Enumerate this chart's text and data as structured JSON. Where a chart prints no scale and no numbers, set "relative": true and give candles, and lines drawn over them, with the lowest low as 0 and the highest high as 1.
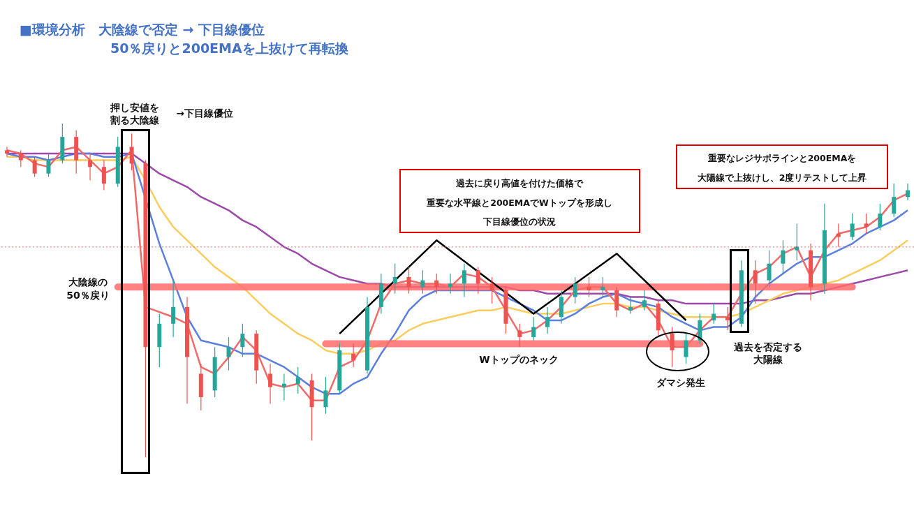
{
  "chart_data": {
    "type": "candlestick",
    "title": "■環境分析　大陰線で否定 → 下目線優位",
    "subtitle": "50％戻りと200EMAを上抜けて再転換",
    "relative": true,
    "categories": [
      null,
      null,
      null,
      null,
      null,
      null,
      null,
      null,
      null,
      null,
      null,
      null,
      null,
      null,
      null,
      null,
      null,
      null,
      null,
      null,
      null,
      null,
      null,
      null,
      null,
      null,
      null,
      null,
      null,
      null,
      null,
      null,
      null,
      null,
      null,
      null,
      null,
      null,
      null,
      null,
      null,
      null,
      null,
      null,
      null,
      null,
      null,
      null,
      null,
      null,
      null,
      null,
      null,
      null,
      null,
      null,
      null,
      null,
      null,
      null,
      null,
      null,
      null,
      null,
      null,
      null
    ],
    "ohlc": [
      [
        0.92,
        0.93,
        0.9,
        0.91
      ],
      [
        0.91,
        0.92,
        0.87,
        0.89
      ],
      [
        0.89,
        0.9,
        0.84,
        0.85
      ],
      [
        0.85,
        0.91,
        0.84,
        0.89
      ],
      [
        0.89,
        1.0,
        0.88,
        0.96
      ],
      [
        0.96,
        0.98,
        0.85,
        0.89
      ],
      [
        0.89,
        0.91,
        0.83,
        0.87
      ],
      [
        0.87,
        0.89,
        0.8,
        0.82
      ],
      [
        0.82,
        0.96,
        0.81,
        0.93
      ],
      [
        0.93,
        0.97,
        0.86,
        0.88
      ],
      [
        0.88,
        0.89,
        0.0,
        0.33
      ],
      [
        0.33,
        0.43,
        0.27,
        0.4
      ],
      [
        0.4,
        0.53,
        0.36,
        0.45
      ],
      [
        0.45,
        0.48,
        0.16,
        0.3
      ],
      [
        0.25,
        0.28,
        0.14,
        0.18
      ],
      [
        0.2,
        0.33,
        0.18,
        0.3
      ],
      [
        0.3,
        0.36,
        0.26,
        0.33
      ],
      [
        0.33,
        0.4,
        0.3,
        0.37
      ],
      [
        0.37,
        0.38,
        0.22,
        0.26
      ],
      [
        0.25,
        0.28,
        0.16,
        0.21
      ],
      [
        0.21,
        0.25,
        0.17,
        0.22
      ],
      [
        0.22,
        0.27,
        0.19,
        0.24
      ],
      [
        0.23,
        0.25,
        0.05,
        0.15
      ],
      [
        0.15,
        0.24,
        0.13,
        0.2
      ],
      [
        0.2,
        0.34,
        0.19,
        0.32
      ],
      [
        0.31,
        0.34,
        0.27,
        0.29
      ],
      [
        0.26,
        0.48,
        0.25,
        0.45
      ],
      [
        0.45,
        0.55,
        0.43,
        0.52
      ],
      [
        0.52,
        0.58,
        0.49,
        0.54
      ],
      [
        0.54,
        0.57,
        0.49,
        0.51
      ],
      [
        0.51,
        0.56,
        0.49,
        0.53
      ],
      [
        0.53,
        0.55,
        0.49,
        0.51
      ],
      [
        0.51,
        0.55,
        0.49,
        0.52
      ],
      [
        0.52,
        0.58,
        0.48,
        0.56
      ],
      [
        0.56,
        0.57,
        0.49,
        0.52
      ],
      [
        0.52,
        0.54,
        0.46,
        0.5
      ],
      [
        0.5,
        0.51,
        0.37,
        0.4
      ],
      [
        0.38,
        0.4,
        0.33,
        0.36
      ],
      [
        0.36,
        0.42,
        0.35,
        0.39
      ],
      [
        0.39,
        0.45,
        0.37,
        0.42
      ],
      [
        0.42,
        0.5,
        0.4,
        0.48
      ],
      [
        0.48,
        0.54,
        0.46,
        0.52
      ],
      [
        0.51,
        0.54,
        0.48,
        0.5
      ],
      [
        0.5,
        0.54,
        0.48,
        0.51
      ],
      [
        0.5,
        0.51,
        0.42,
        0.44
      ],
      [
        0.44,
        0.48,
        0.43,
        0.45
      ],
      [
        0.45,
        0.5,
        0.44,
        0.47
      ],
      [
        0.46,
        0.47,
        0.36,
        0.38
      ],
      [
        0.37,
        0.39,
        0.27,
        0.32
      ],
      [
        0.3,
        0.37,
        0.28,
        0.35
      ],
      [
        0.35,
        0.43,
        0.34,
        0.41
      ],
      [
        0.41,
        0.46,
        0.4,
        0.43
      ],
      [
        0.42,
        0.45,
        0.38,
        0.41
      ],
      [
        0.4,
        0.59,
        0.39,
        0.56
      ],
      [
        0.56,
        0.59,
        0.46,
        0.52
      ],
      [
        0.53,
        0.62,
        0.51,
        0.58
      ],
      [
        0.58,
        0.65,
        0.55,
        0.62
      ],
      [
        0.62,
        0.7,
        0.59,
        0.63
      ],
      [
        0.62,
        0.64,
        0.47,
        0.51
      ],
      [
        0.52,
        0.76,
        0.49,
        0.68
      ],
      [
        0.67,
        0.7,
        0.63,
        0.66
      ],
      [
        0.66,
        0.73,
        0.65,
        0.7
      ],
      [
        0.7,
        0.73,
        0.67,
        0.69
      ],
      [
        0.69,
        0.76,
        0.68,
        0.73
      ],
      [
        0.73,
        0.82,
        0.72,
        0.78
      ],
      [
        0.78,
        0.82,
        0.77,
        0.8
      ]
    ],
    "series": [
      {
        "type": "line",
        "color": "#9b4aa8",
        "values": [
          0.91,
          0.91,
          0.91,
          0.91,
          0.91,
          0.91,
          0.91,
          0.91,
          0.91,
          0.91,
          0.88,
          0.85,
          0.83,
          0.81,
          0.78,
          0.76,
          0.74,
          0.71,
          0.69,
          0.66,
          0.63,
          0.61,
          0.58,
          0.56,
          0.54,
          0.53,
          0.52,
          0.52,
          0.51,
          0.51,
          0.51,
          0.51,
          0.51,
          0.51,
          0.51,
          0.51,
          0.51,
          0.5,
          0.5,
          0.49,
          0.49,
          0.49,
          0.49,
          0.49,
          0.49,
          0.48,
          0.48,
          0.47,
          0.47,
          0.46,
          0.46,
          0.46,
          0.46,
          0.46,
          0.47,
          0.47,
          0.48,
          0.49,
          0.49,
          0.5,
          0.51,
          0.52,
          0.53,
          0.54,
          0.55,
          0.56
        ]
      },
      {
        "type": "line",
        "color": "#f9cd5e",
        "values": [
          0.9,
          0.9,
          0.89,
          0.89,
          0.89,
          0.89,
          0.89,
          0.89,
          0.89,
          0.9,
          0.83,
          0.75,
          0.69,
          0.65,
          0.61,
          0.57,
          0.54,
          0.51,
          0.47,
          0.43,
          0.4,
          0.37,
          0.35,
          0.32,
          0.31,
          0.31,
          0.32,
          0.34,
          0.35,
          0.38,
          0.4,
          0.41,
          0.42,
          0.43,
          0.44,
          0.44,
          0.45,
          0.44,
          0.43,
          0.43,
          0.43,
          0.44,
          0.45,
          0.46,
          0.46,
          0.45,
          0.45,
          0.44,
          0.43,
          0.42,
          0.42,
          0.42,
          0.42,
          0.43,
          0.45,
          0.47,
          0.49,
          0.5,
          null,
          0.52,
          0.53,
          0.55,
          0.57,
          0.59,
          0.62,
          0.65
        ]
      },
      {
        "type": "line",
        "color": "#5b7fdc",
        "values": [
          0.91,
          0.9,
          0.9,
          0.89,
          0.9,
          0.91,
          0.91,
          0.9,
          0.9,
          0.91,
          null,
          0.64,
          0.53,
          0.42,
          0.35,
          0.34,
          0.33,
          0.31,
          0.31,
          0.29,
          0.27,
          0.24,
          0.21,
          0.19,
          0.19,
          0.22,
          0.24,
          0.31,
          0.37,
          0.44,
          0.48,
          0.5,
          0.5,
          0.5,
          0.5,
          0.5,
          0.48,
          0.46,
          0.44,
          0.41,
          0.41,
          0.43,
          0.46,
          0.48,
          0.49,
          0.47,
          0.46,
          0.45,
          0.42,
          0.4,
          0.38,
          0.39,
          0.39,
          0.42,
          0.48,
          0.52,
          0.55,
          0.58,
          0.6,
          0.6,
          0.62,
          0.64,
          0.67,
          0.69,
          0.71,
          0.74
        ]
      },
      {
        "type": "line",
        "color": "#f06a6a",
        "values": [
          0.92,
          0.91,
          0.88,
          0.87,
          0.92,
          0.93,
          0.89,
          0.85,
          0.87,
          0.92,
          0.45,
          null,
          0.42,
          0.4,
          0.27,
          0.25,
          0.3,
          0.36,
          0.32,
          0.22,
          0.21,
          0.22,
          0.17,
          0.17,
          0.27,
          0.29,
          0.35,
          0.46,
          0.52,
          0.53,
          0.52,
          0.52,
          0.51,
          0.55,
          0.54,
          0.51,
          0.44,
          0.37,
          0.38,
          0.41,
          0.45,
          0.5,
          0.51,
          0.51,
          0.46,
          0.44,
          0.46,
          0.41,
          0.33,
          0.33,
          0.38,
          0.42,
          0.42,
          0.49,
          0.55,
          0.57,
          0.61,
          0.63,
          0.54,
          0.62,
          0.67,
          0.68,
          0.69,
          0.72,
          0.77,
          0.79
        ]
      },
      {
        "type": "line",
        "color": "#ff6b6b",
        "values": [
          null,
          null,
          null,
          null,
          null,
          null,
          null,
          null,
          0.51,
          0.51,
          0.51,
          0.51,
          0.51,
          0.51,
          0.51,
          0.51,
          0.51,
          0.51,
          0.51,
          0.51,
          0.51,
          0.51,
          0.51,
          0.51,
          0.51,
          0.51,
          0.51,
          0.51,
          0.51,
          0.51,
          0.51,
          0.51,
          0.51,
          0.51,
          0.51,
          0.51,
          0.51,
          0.51,
          0.51,
          0.51,
          0.51,
          0.51,
          0.51,
          0.51,
          0.51,
          0.51,
          0.51,
          0.51,
          0.51,
          0.51,
          0.51,
          0.51,
          0.51,
          0.51,
          0.51,
          0.51,
          0.51,
          0.51,
          0.51,
          0.51,
          0.51,
          0.51,
          null,
          null,
          null,
          null
        ]
      },
      {
        "type": "line",
        "color": "#ff6b6b",
        "values": [
          null,
          null,
          null,
          null,
          null,
          null,
          null,
          null,
          null,
          null,
          null,
          null,
          null,
          null,
          null,
          null,
          null,
          null,
          null,
          null,
          null,
          null,
          null,
          0.34,
          0.34,
          0.34,
          0.34,
          0.34,
          0.34,
          0.34,
          0.34,
          0.34,
          0.34,
          0.34,
          0.34,
          0.34,
          0.34,
          0.34,
          0.34,
          0.34,
          0.34,
          0.34,
          0.34,
          0.34,
          0.34,
          0.34,
          0.34,
          0.34,
          0.34,
          0.34,
          0.34,
          null,
          null,
          null,
          null,
          null,
          null,
          null,
          null,
          null,
          null,
          null,
          null,
          null,
          null,
          null
        ]
      },
      {
        "type": "line",
        "color": "#000000",
        "values": [
          null,
          null,
          null,
          null,
          null,
          null,
          null,
          null,
          null,
          null,
          null,
          null,
          null,
          null,
          null,
          null,
          null,
          null,
          null,
          null,
          null,
          null,
          null,
          null,
          0.37,
          null,
          null,
          null,
          null,
          null,
          null,
          0.65,
          null,
          null,
          null,
          null,
          null,
          null,
          0.43,
          null,
          null,
          null,
          null,
          null,
          0.61,
          null,
          null,
          null,
          null,
          0.41,
          null,
          null,
          null,
          null,
          null,
          null,
          null,
          null,
          null,
          null,
          null,
          null,
          null,
          null,
          null,
          null
        ]
      }
    ],
    "ref_lines": [
      {
        "axis": "y",
        "value": 0.63,
        "color": "#e57373",
        "line_style": "dotted"
      }
    ],
    "annotations": [
      "押し安値を",
      "割る大陰線",
      "→下目線優位",
      "大陰線の\n50％戻り",
      "過去に戻り高値を付けた価格で",
      "重要な水平線と200EMAでWトップを形成し",
      "下目線優位の状況",
      "Wトップのネック",
      "ダマシ発生",
      "過去を否定する",
      "大陽線",
      "重要なレジサポラインと200EMAを",
      "大陽線で上抜けし、2度リテストして上昇"
    ]
  }
}
